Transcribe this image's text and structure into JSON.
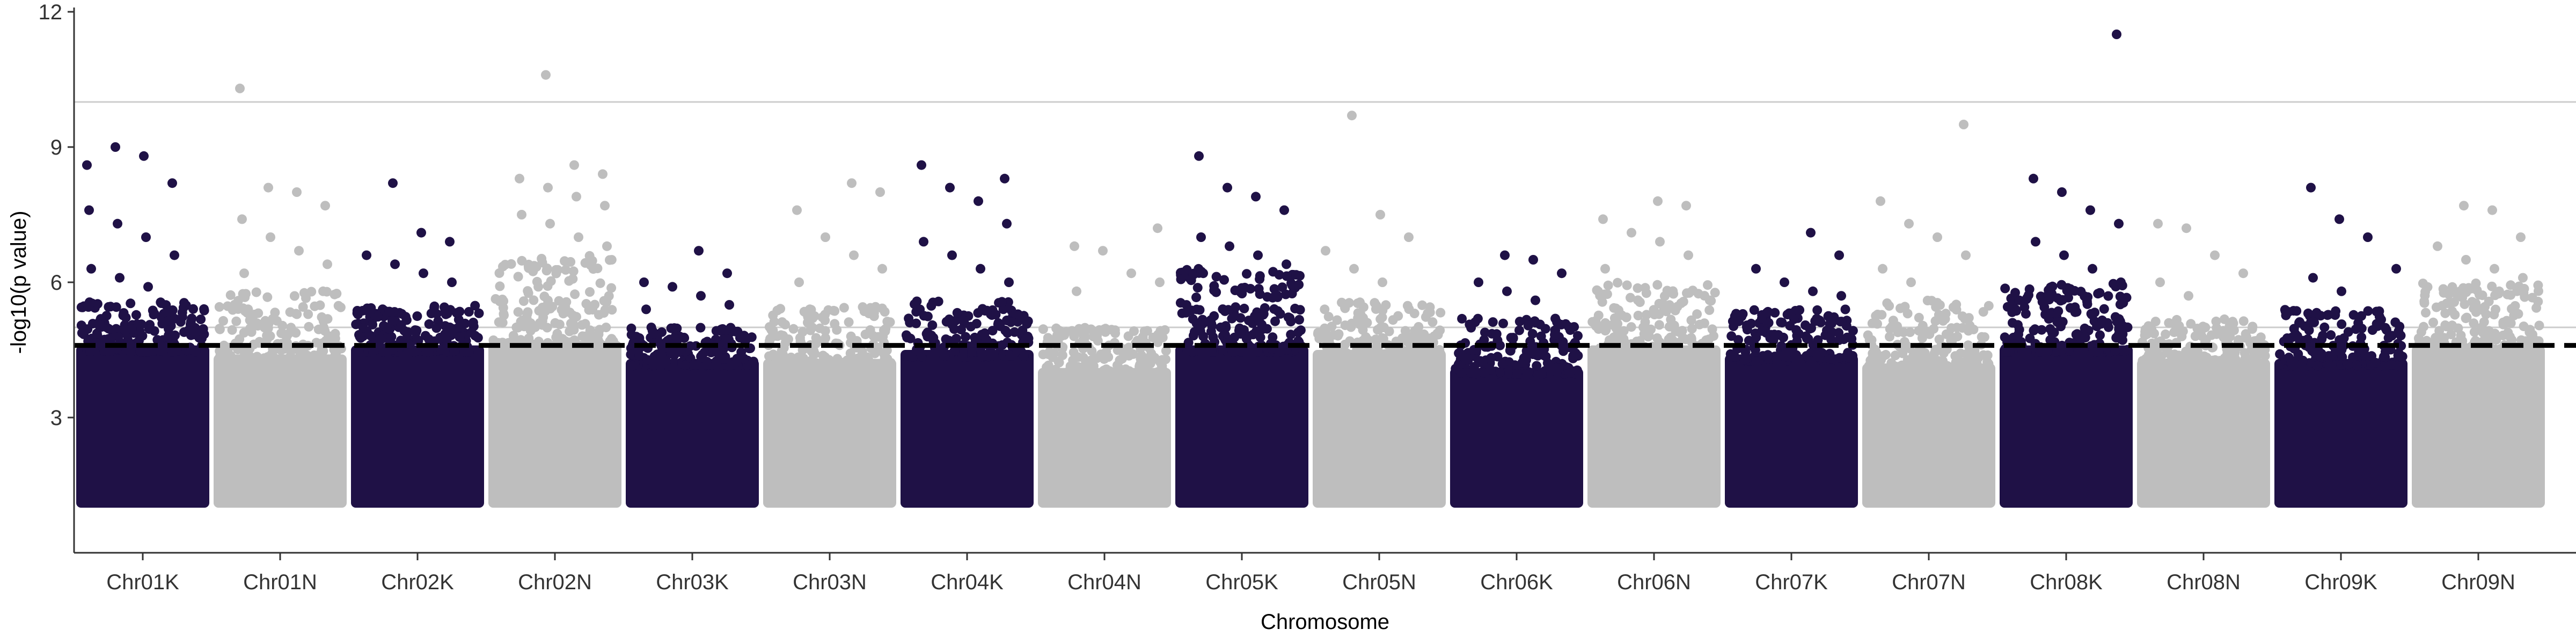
{
  "chart_data": {
    "type": "scatter",
    "subtype": "manhattan",
    "title": "",
    "xlabel": "Chromosome",
    "ylabel": "-log10(p value)",
    "ylim": [
      0,
      12
    ],
    "yticks": [
      3,
      6,
      9,
      12
    ],
    "grid": false,
    "legend": "none",
    "colors": {
      "odd": "#1f1146",
      "even": "#bebebe",
      "threshold_dashed": "#000000",
      "reference_lines": "#cccccc",
      "axis": "#333333"
    },
    "threshold_lines": [
      {
        "y": 4.6,
        "style": "dashed"
      },
      {
        "y": 5.0,
        "style": "solid"
      },
      {
        "y": 10.0,
        "style": "solid"
      }
    ],
    "points_floor": 1.0,
    "categories": [
      "Chr01K",
      "Chr01N",
      "Chr02K",
      "Chr02N",
      "Chr03K",
      "Chr03N",
      "Chr04K",
      "Chr04N",
      "Chr05K",
      "Chr05N",
      "Chr06K",
      "Chr06N",
      "Chr07K",
      "Chr07N",
      "Chr08K",
      "Chr08N",
      "Chr09K",
      "Chr09N"
    ],
    "series": [
      {
        "chromosome": "Chr01K",
        "color_group": "odd",
        "bulk_max": 4.6,
        "dense_max": 5.6,
        "top_hits": [
          8.6,
          9.0,
          8.8,
          8.2,
          7.6,
          7.3,
          7.0,
          6.6,
          6.3,
          6.1,
          5.9
        ]
      },
      {
        "chromosome": "Chr01N",
        "color_group": "even",
        "bulk_max": 4.4,
        "dense_max": 5.8,
        "top_hits": [
          10.3,
          8.1,
          8.0,
          7.7,
          7.4,
          7.0,
          6.7,
          6.4,
          6.2
        ]
      },
      {
        "chromosome": "Chr02K",
        "color_group": "odd",
        "bulk_max": 4.6,
        "dense_max": 5.5,
        "top_hits": [
          8.2,
          7.1,
          6.9,
          6.6,
          6.4,
          6.2,
          6.0
        ]
      },
      {
        "chromosome": "Chr02N",
        "color_group": "even",
        "bulk_max": 4.7,
        "dense_max": 6.6,
        "top_hits": [
          10.6,
          8.6,
          8.4,
          8.3,
          8.1,
          7.9,
          7.7,
          7.5,
          7.3,
          7.0,
          6.8
        ]
      },
      {
        "chromosome": "Chr03K",
        "color_group": "odd",
        "bulk_max": 4.3,
        "dense_max": 5.0,
        "top_hits": [
          6.7,
          6.2,
          6.0,
          5.9,
          5.7,
          5.5,
          5.4
        ]
      },
      {
        "chromosome": "Chr03N",
        "color_group": "even",
        "bulk_max": 4.3,
        "dense_max": 5.5,
        "top_hits": [
          8.2,
          8.0,
          7.6,
          7.0,
          6.6,
          6.3,
          6.0
        ]
      },
      {
        "chromosome": "Chr04K",
        "color_group": "odd",
        "bulk_max": 4.5,
        "dense_max": 5.6,
        "top_hits": [
          8.3,
          8.6,
          8.1,
          7.8,
          7.3,
          6.9,
          6.6,
          6.3,
          6.0
        ]
      },
      {
        "chromosome": "Chr04N",
        "color_group": "even",
        "bulk_max": 4.1,
        "dense_max": 5.0,
        "top_hits": [
          7.2,
          6.8,
          6.7,
          6.2,
          6.0,
          5.8
        ]
      },
      {
        "chromosome": "Chr05K",
        "color_group": "odd",
        "bulk_max": 4.6,
        "dense_max": 6.3,
        "top_hits": [
          8.8,
          8.1,
          7.9,
          7.6,
          7.0,
          6.8,
          6.6,
          6.4,
          6.2
        ]
      },
      {
        "chromosome": "Chr05N",
        "color_group": "even",
        "bulk_max": 4.5,
        "dense_max": 5.6,
        "top_hits": [
          9.7,
          7.5,
          7.0,
          6.7,
          6.3,
          6.0
        ]
      },
      {
        "chromosome": "Chr06K",
        "color_group": "odd",
        "bulk_max": 4.1,
        "dense_max": 5.2,
        "top_hits": [
          6.6,
          6.5,
          6.2,
          6.0,
          5.8,
          5.6
        ]
      },
      {
        "chromosome": "Chr06N",
        "color_group": "even",
        "bulk_max": 4.6,
        "dense_max": 6.0,
        "top_hits": [
          7.8,
          7.7,
          7.4,
          7.1,
          6.9,
          6.6,
          6.3
        ]
      },
      {
        "chromosome": "Chr07K",
        "color_group": "odd",
        "bulk_max": 4.4,
        "dense_max": 5.4,
        "top_hits": [
          7.1,
          6.6,
          6.3,
          6.0,
          5.8,
          5.7
        ]
      },
      {
        "chromosome": "Chr07N",
        "color_group": "even",
        "bulk_max": 4.2,
        "dense_max": 5.6,
        "top_hits": [
          9.5,
          7.8,
          7.3,
          7.0,
          6.6,
          6.3,
          6.0
        ]
      },
      {
        "chromosome": "Chr08K",
        "color_group": "odd",
        "bulk_max": 4.6,
        "dense_max": 6.0,
        "top_hits": [
          11.5,
          8.3,
          8.0,
          7.6,
          7.3,
          6.9,
          6.6,
          6.3,
          6.0
        ]
      },
      {
        "chromosome": "Chr08N",
        "color_group": "even",
        "bulk_max": 4.3,
        "dense_max": 5.2,
        "top_hits": [
          7.3,
          7.2,
          6.6,
          6.2,
          6.0,
          5.7
        ]
      },
      {
        "chromosome": "Chr09K",
        "color_group": "odd",
        "bulk_max": 4.3,
        "dense_max": 5.4,
        "top_hits": [
          8.1,
          7.4,
          7.0,
          6.3,
          6.1,
          5.8
        ]
      },
      {
        "chromosome": "Chr09N",
        "color_group": "even",
        "bulk_max": 4.6,
        "dense_max": 6.0,
        "top_hits": [
          7.7,
          7.6,
          7.0,
          6.8,
          6.5,
          6.3,
          6.1
        ]
      }
    ]
  }
}
